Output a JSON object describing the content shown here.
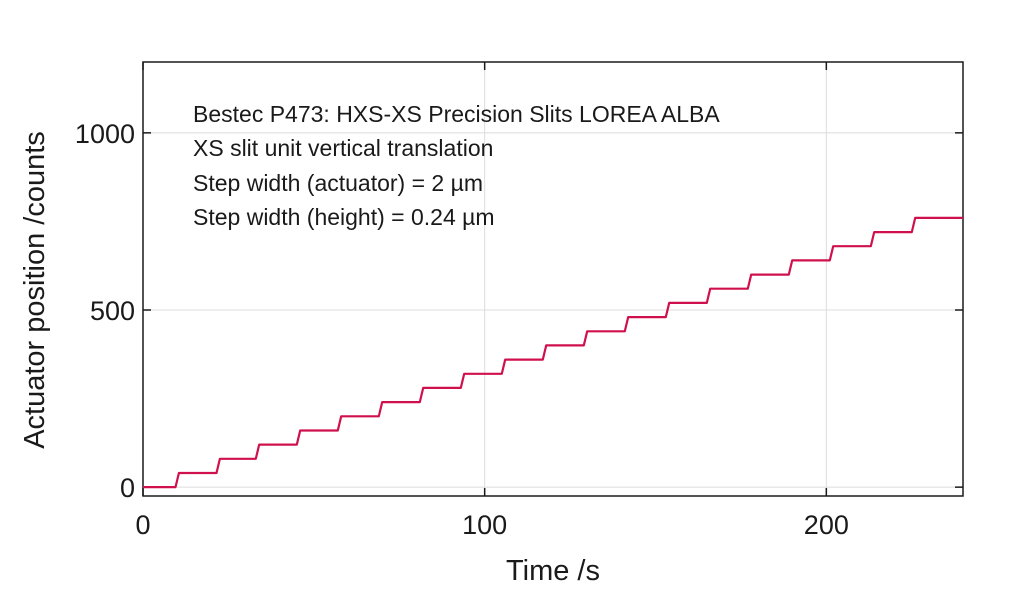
{
  "chart_data": {
    "type": "line",
    "xlabel": "Time /s",
    "ylabel": "Actuator position /counts",
    "xlim": [
      0,
      240
    ],
    "ylim": [
      -25,
      1200
    ],
    "xticks": [
      0,
      100,
      200
    ],
    "yticks": [
      0,
      500,
      1000
    ],
    "grid": true,
    "annotations": [
      "Bestec P473: HXS-XS Precision Slits LOREA ALBA",
      "XS slit unit vertical translation",
      "Step width (actuator) = 2 µm",
      "Step width (height) = 0.24 µm"
    ],
    "line_color": "#d0104c",
    "series": [
      {
        "x": [
          0,
          9.5,
          10.5,
          21.5,
          22.5,
          33,
          34,
          45,
          46,
          57,
          58,
          69,
          70,
          81,
          82,
          93,
          94,
          105,
          106,
          117,
          118,
          129,
          130,
          141,
          142,
          153,
          154,
          165,
          166,
          177,
          178,
          189,
          190,
          201,
          202,
          213,
          214,
          225,
          226,
          240
        ],
        "y": [
          0,
          0,
          40,
          40,
          80,
          80,
          120,
          120,
          160,
          160,
          200,
          200,
          240,
          240,
          280,
          280,
          320,
          320,
          360,
          360,
          400,
          400,
          440,
          440,
          480,
          480,
          520,
          520,
          560,
          560,
          600,
          600,
          640,
          640,
          680,
          680,
          720,
          720,
          760,
          760
        ]
      }
    ]
  }
}
